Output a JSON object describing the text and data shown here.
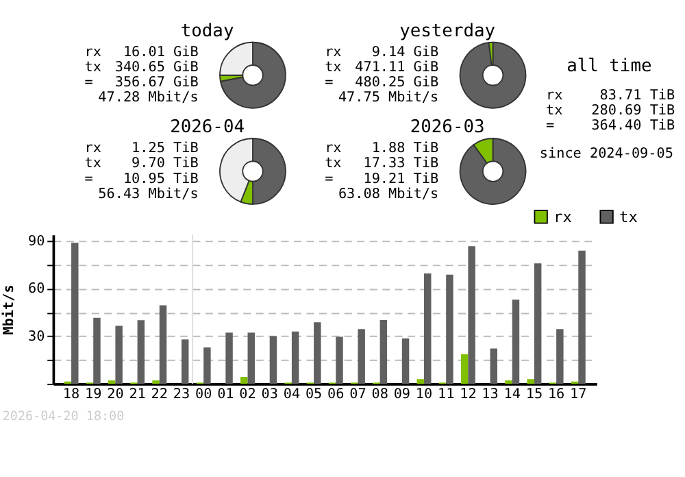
{
  "chart_data": [
    {
      "type": "donut",
      "title": "today",
      "categories": [
        null,
        null,
        null
      ],
      "values": [
        72,
        3,
        25
      ],
      "colors": [
        "#606060",
        "#80c000",
        "#eeeeee"
      ],
      "annotations": [
        "rx",
        "16.01 GiB",
        "tx",
        "340.65 GiB",
        "=",
        "356.67 GiB",
        "47.28 Mbit/s"
      ]
    },
    {
      "type": "donut",
      "title": "yesterday",
      "categories": [
        null,
        null
      ],
      "values": [
        98,
        2
      ],
      "colors": [
        "#606060",
        "#80c000"
      ],
      "annotations": [
        "rx",
        "9.14 GiB",
        "tx",
        "471.11 GiB",
        "=",
        "480.25 GiB",
        "47.75 Mbit/s"
      ]
    },
    {
      "type": "other",
      "title": "all time",
      "annotations": [
        "rx",
        "83.71 TiB",
        "tx",
        "280.69 TiB",
        "=",
        "364.40 TiB",
        "since 2024-09-05"
      ]
    },
    {
      "type": "donut",
      "title": "2026-04",
      "categories": [
        null,
        null,
        null
      ],
      "values": [
        50,
        6,
        44
      ],
      "colors": [
        "#606060",
        "#80c000",
        "#eeeeee"
      ],
      "annotations": [
        "rx",
        "1.25 TiB",
        "tx",
        "9.70 TiB",
        "=",
        "10.95 TiB",
        "56.43 Mbit/s"
      ]
    },
    {
      "type": "donut",
      "title": "2026-03",
      "categories": [
        null,
        null
      ],
      "values": [
        90,
        10
      ],
      "colors": [
        "#606060",
        "#80c000"
      ],
      "annotations": [
        "rx",
        "1.88 TiB",
        "tx",
        "17.33 TiB",
        "=",
        "19.21 TiB",
        "63.08 Mbit/s"
      ]
    },
    {
      "type": "bar",
      "categories": [
        "18",
        "19",
        "20",
        "21",
        "22",
        "23",
        "00",
        "01",
        "02",
        "03",
        "04",
        "05",
        "06",
        "07",
        "08",
        "09",
        "10",
        "11",
        "12",
        "13",
        "14",
        "15",
        "16",
        "17"
      ],
      "series": [
        {
          "name": "rx",
          "color": "#80c000",
          "values": [
            1.4,
            0.7,
            2.1,
            0.7,
            2.1,
            0,
            0.7,
            0,
            4.3,
            0,
            0.7,
            0.7,
            0.7,
            0.7,
            0.7,
            0,
            2.9,
            0.7,
            18.6,
            0,
            2.1,
            2.9,
            0.7,
            1.4
          ]
        },
        {
          "name": "tx",
          "color": "#606060",
          "values": [
            88.8,
            41.5,
            36.5,
            40,
            49.4,
            27.9,
            22.9,
            32.2,
            32.2,
            30,
            32.9,
            38.7,
            29.6,
            34.4,
            40.1,
            28.6,
            69.5,
            68.7,
            86.6,
            22.2,
            53,
            75.9,
            34.4,
            83.8
          ]
        }
      ],
      "ylabel": "Mbit/s",
      "ylim": [
        0,
        94
      ],
      "yticks": [
        {
          "value": 0,
          "label": null
        },
        {
          "value": 15,
          "label": null
        },
        30,
        {
          "value": 45,
          "label": null
        },
        60,
        {
          "value": 75,
          "label": null
        },
        90
      ],
      "grid": "y",
      "line_style": "dashed",
      "legend": "top right",
      "ref_lines": [
        {
          "axis": "x",
          "value": "00",
          "color": "#dddddd"
        }
      ],
      "annotations": [
        "2026-04-20 18:00"
      ]
    }
  ]
}
